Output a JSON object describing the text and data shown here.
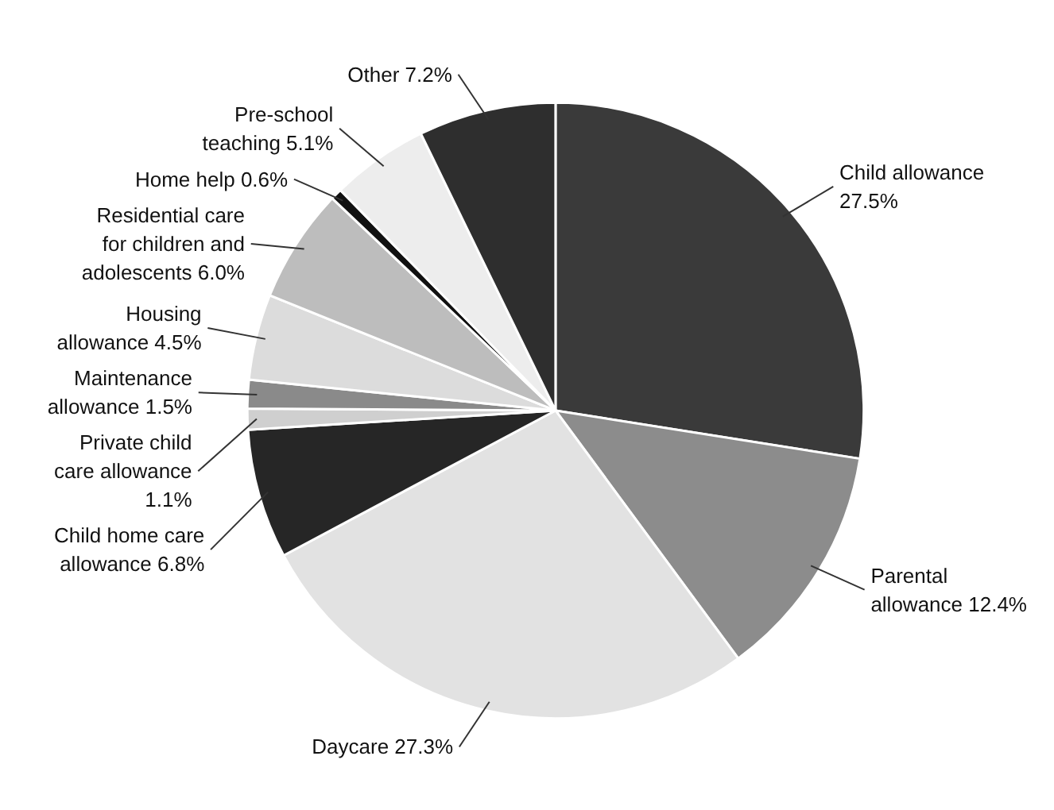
{
  "chart_data": {
    "type": "pie",
    "categories": [
      "Child allowance",
      "Parental allowance",
      "Daycare",
      "Child home care allowance",
      "Private child care allowance",
      "Maintenance allowance",
      "Housing allowance",
      "Residential care for children and adolescents",
      "Home help",
      "Pre-school teaching",
      "Other"
    ],
    "values": [
      27.5,
      12.4,
      27.3,
      6.8,
      1.1,
      1.5,
      4.5,
      6.0,
      0.6,
      5.1,
      7.2
    ],
    "colors": [
      "#3a3a3a",
      "#8c8c8c",
      "#e2e2e2",
      "#262626",
      "#cfcfcf",
      "#8a8a8a",
      "#dcdcdc",
      "#bdbdbd",
      "#111111",
      "#ededed",
      "#2e2e2e"
    ],
    "value_labels": [
      "27.5%",
      "12.4%",
      "27.3%",
      "6.8%",
      "1.1%",
      "1.5%",
      "4.5%",
      "6.0%",
      "0.6%",
      "5.1%",
      "7.2%"
    ]
  }
}
